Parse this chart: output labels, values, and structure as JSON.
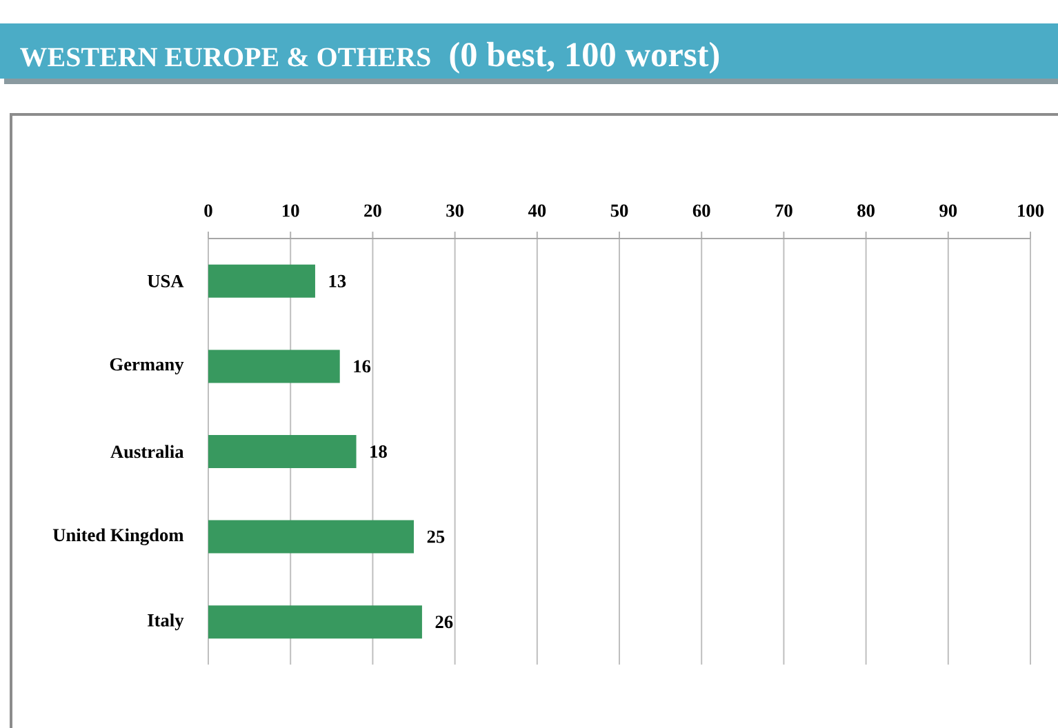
{
  "chart_data": {
    "type": "bar",
    "orientation": "horizontal",
    "title": "WESTERN EUROPE & OTHERS",
    "subtitle": "(0 best, 100 worst)",
    "categories": [
      "USA",
      "Germany",
      "Australia",
      "United Kingdom",
      "Italy"
    ],
    "values": [
      13,
      16,
      18,
      25,
      26
    ],
    "color": "#38995f",
    "xlim": [
      0,
      100
    ],
    "xticks": [
      0,
      10,
      20,
      30,
      40,
      50,
      60,
      70,
      80,
      90,
      100
    ],
    "grid": "x",
    "data_labels": true
  }
}
